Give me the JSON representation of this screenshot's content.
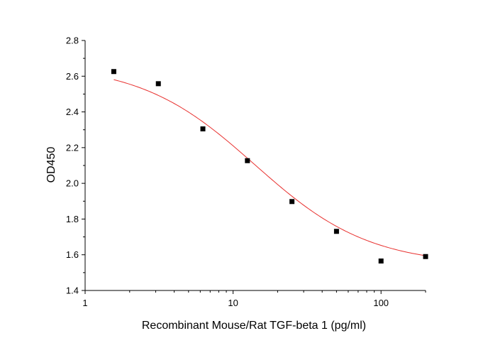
{
  "chart_data": {
    "type": "scatter",
    "title": "",
    "xlabel": "Recombinant Mouse/Rat TGF-beta 1 (pg/ml)",
    "ylabel": "OD450",
    "xscale": "log",
    "xlim": [
      1,
      200
    ],
    "ylim": [
      1.4,
      2.8
    ],
    "x_ticks": [
      1,
      10,
      100
    ],
    "x_tick_labels": [
      "1",
      "10",
      "100"
    ],
    "y_ticks": [
      1.4,
      1.6,
      1.8,
      2.0,
      2.2,
      2.4,
      2.6,
      2.8
    ],
    "y_tick_labels": [
      "1.4",
      "1.6",
      "1.8",
      "2.0",
      "2.2",
      "2.4",
      "2.6",
      "2.8"
    ],
    "grid": false,
    "legend": "none",
    "series": [
      {
        "marker": "square",
        "color": "#000000",
        "x": [
          1.5625,
          3.125,
          6.25,
          12.5,
          25,
          50,
          100,
          200
        ],
        "y": [
          2.626,
          2.558,
          2.305,
          2.127,
          1.898,
          1.731,
          1.565,
          1.59
        ]
      }
    ],
    "fit": {
      "model": "4PL",
      "color": "#e8312f",
      "x_range": [
        1.5625,
        200
      ],
      "params": {
        "A": 2.67,
        "D": 1.54,
        "C": 14.0,
        "B": 1.12
      }
    }
  }
}
